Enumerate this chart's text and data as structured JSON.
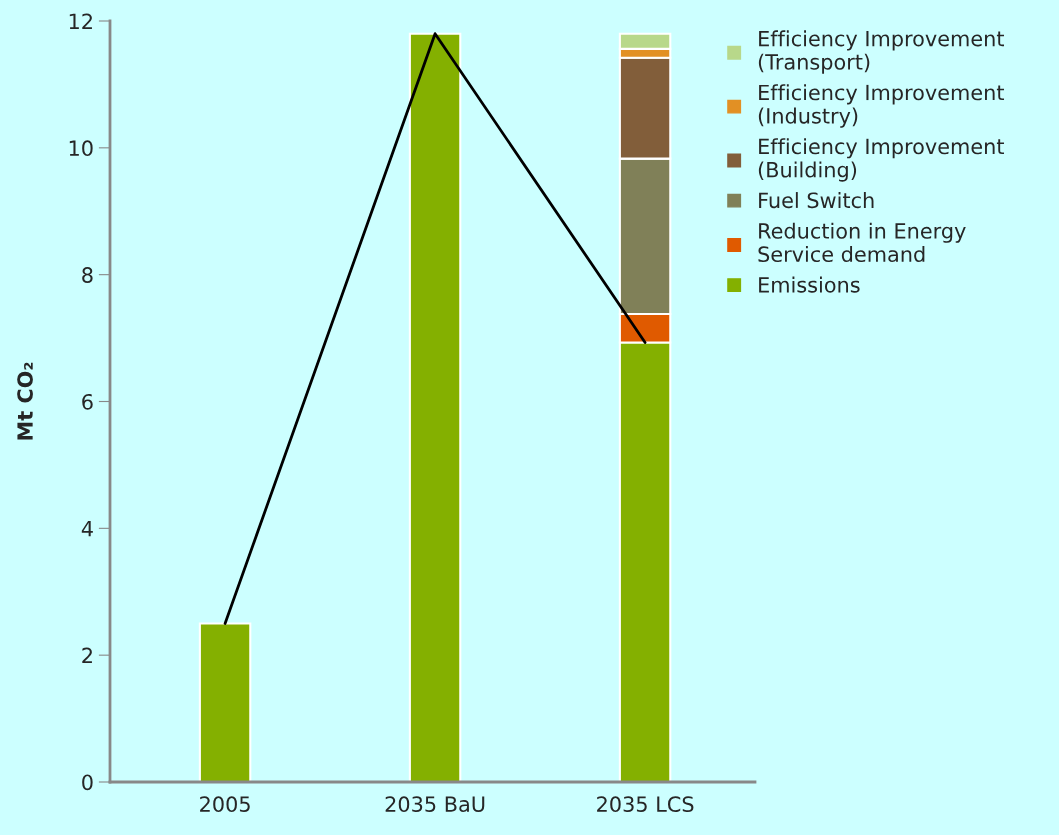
{
  "chart_data": {
    "type": "bar",
    "stacked": true,
    "ylabel": "Mt CO₂",
    "categories": [
      "2005",
      "2035 BaU",
      "2035 LCS"
    ],
    "ylim": [
      0,
      12
    ],
    "yticks": [
      0,
      2,
      4,
      6,
      8,
      10,
      12
    ],
    "grid": false,
    "legend": "right",
    "series": [
      {
        "name": "Emissions",
        "color": "#84b000",
        "values": [
          2.5,
          11.8,
          6.93
        ]
      },
      {
        "name": "Reduction in Energy\nService demand",
        "color": "#e05a00",
        "values": [
          null,
          null,
          0.45
        ]
      },
      {
        "name": "Fuel Switch",
        "color": "#808058",
        "values": [
          null,
          null,
          2.45
        ]
      },
      {
        "name": "Efficiency Improvement\n(Building)",
        "color": "#825e3a",
        "values": [
          null,
          null,
          1.59
        ]
      },
      {
        "name": "Efficiency Improvement\n(Industry)",
        "color": "#e29024",
        "values": [
          null,
          null,
          0.14
        ]
      },
      {
        "name": "Efficiency Improvement\n(Transport)",
        "color": "#b8d88a",
        "values": [
          null,
          null,
          0.24
        ]
      },
      {
        "type": "line",
        "color": "#000000",
        "values": [
          2.5,
          11.8,
          6.93
        ]
      }
    ]
  }
}
